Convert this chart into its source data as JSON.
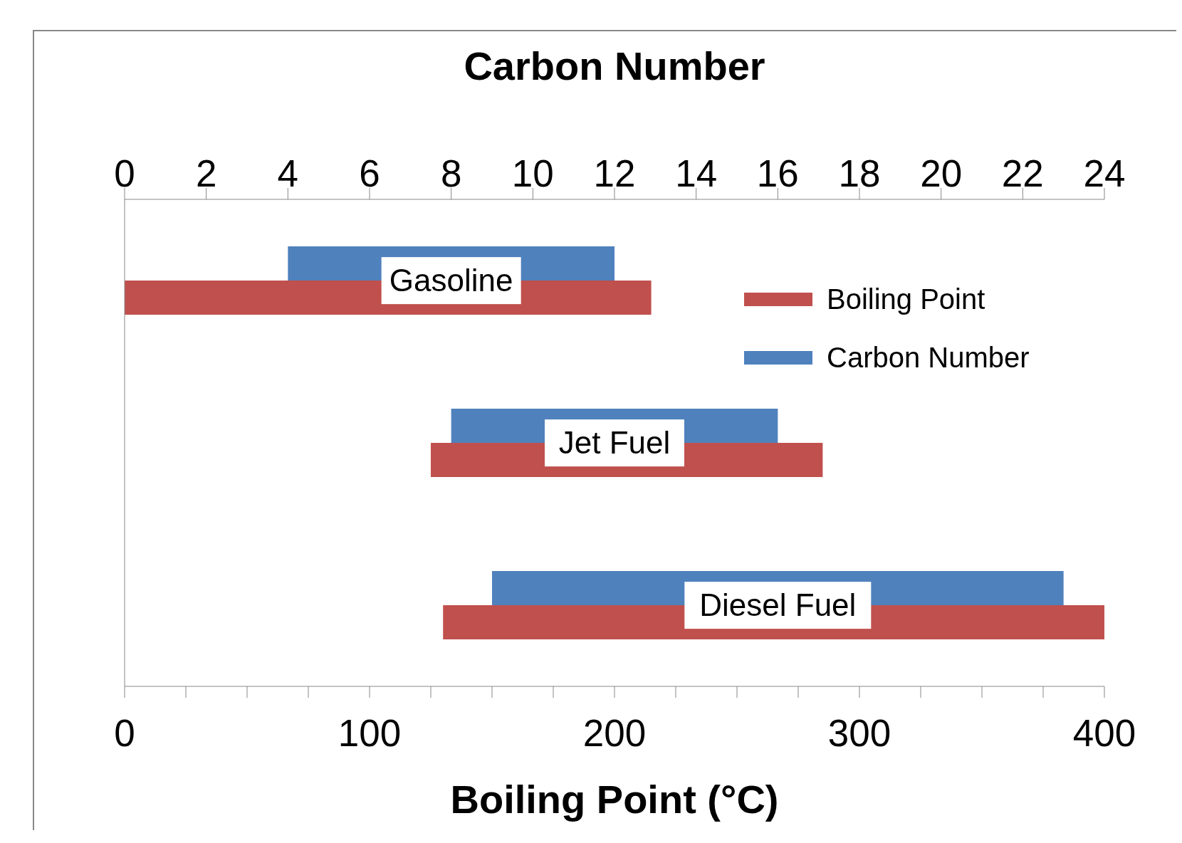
{
  "chart_data": {
    "type": "bar",
    "orientation": "horizontal",
    "categories": [
      "Gasoline",
      "Jet Fuel",
      "Diesel Fuel"
    ],
    "series": [
      {
        "name": "Boiling Point",
        "color": "#c0504d",
        "base": [
          0,
          125,
          130
        ],
        "values": [
          215,
          160,
          270
        ]
      },
      {
        "name": "Carbon Number",
        "color": "#4f81bd",
        "axis": "x2",
        "base": [
          4,
          8,
          9
        ],
        "values": [
          8,
          8,
          14
        ]
      }
    ],
    "xlabel": "Boiling Point (°C)",
    "x2label": "Carbon Number",
    "xlim": [
      0,
      400
    ],
    "xticks": [
      0,
      {
        "value": 25,
        "label": null
      },
      {
        "value": 50,
        "label": null
      },
      {
        "value": 75,
        "label": null
      },
      100,
      {
        "value": 125,
        "label": null
      },
      {
        "value": 150,
        "label": null
      },
      {
        "value": 175,
        "label": null
      },
      200,
      {
        "value": 225,
        "label": null
      },
      {
        "value": 250,
        "label": null
      },
      {
        "value": 275,
        "label": null
      },
      300,
      {
        "value": 325,
        "label": null
      },
      {
        "value": 350,
        "label": null
      },
      {
        "value": 375,
        "label": null
      },
      400
    ],
    "x2lim": [
      0,
      24
    ],
    "x2ticks": [
      0,
      2,
      4,
      6,
      8,
      10,
      12,
      14,
      16,
      18,
      20,
      22,
      24
    ],
    "legend": "top right",
    "grid": false
  }
}
